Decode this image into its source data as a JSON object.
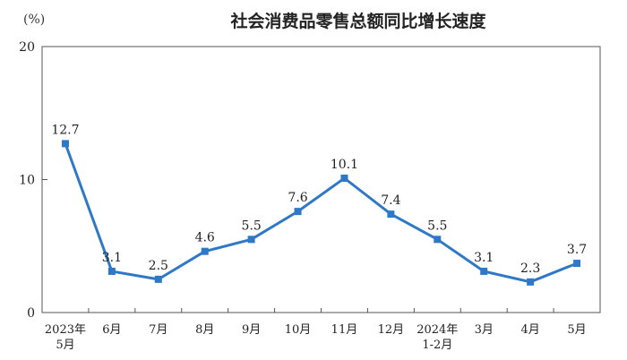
{
  "chart_data": {
    "type": "line",
    "title": "社会消费品零售总额同比增长速度",
    "unit_label": "(%)",
    "categories": [
      "2023年\n5月",
      "6月",
      "7月",
      "8月",
      "9月",
      "10月",
      "11月",
      "12月",
      "2024年\n1-2月",
      "3月",
      "4月",
      "5月"
    ],
    "values": [
      12.7,
      3.1,
      2.5,
      4.6,
      5.5,
      7.6,
      10.1,
      7.4,
      5.5,
      3.1,
      2.3,
      3.7
    ],
    "value_labels": [
      "12.7",
      "3.1",
      "2.5",
      "4.6",
      "5.5",
      "7.6",
      "10.1",
      "7.4",
      "5.5",
      "3.1",
      "2.3",
      "3.7"
    ],
    "y_ticks": [
      "0",
      "10",
      "20"
    ],
    "ylim": [
      0,
      20
    ],
    "grid": false,
    "legend": "none",
    "colors": {
      "line": "#2e78c7",
      "axis": "#333333",
      "text": "#222222"
    }
  }
}
